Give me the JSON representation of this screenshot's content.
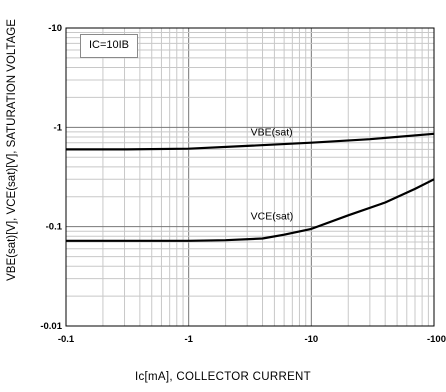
{
  "chart_data": {
    "type": "line",
    "xlabel": "Ic[mA], COLLECTOR CURRENT",
    "ylabel": "VBE(sat)[V], VCE(sat)[V], SATURATION VOLTAGE",
    "x_scale": "log",
    "y_scale": "log",
    "xlim": [
      0.1,
      100
    ],
    "ylim": [
      0.01,
      10
    ],
    "x_tick_labels": [
      "-0.1",
      "-1",
      "-10",
      "-100"
    ],
    "y_tick_labels": [
      "-10",
      "-1",
      "-0.1",
      "-0.01"
    ],
    "grid": true,
    "annotation": "IC=10IB",
    "series": [
      {
        "name": "VBE(sat)",
        "color": "#000000",
        "x": [
          0.1,
          0.3,
          1,
          3,
          10,
          30,
          100
        ],
        "y": [
          0.6,
          0.6,
          0.61,
          0.65,
          0.7,
          0.76,
          0.86
        ]
      },
      {
        "name": "VCE(sat)",
        "color": "#000000",
        "x": [
          0.1,
          0.3,
          1,
          2,
          4,
          6,
          10,
          20,
          40,
          70,
          100
        ],
        "y": [
          0.072,
          0.072,
          0.072,
          0.073,
          0.076,
          0.083,
          0.095,
          0.13,
          0.175,
          0.24,
          0.3
        ]
      }
    ]
  }
}
